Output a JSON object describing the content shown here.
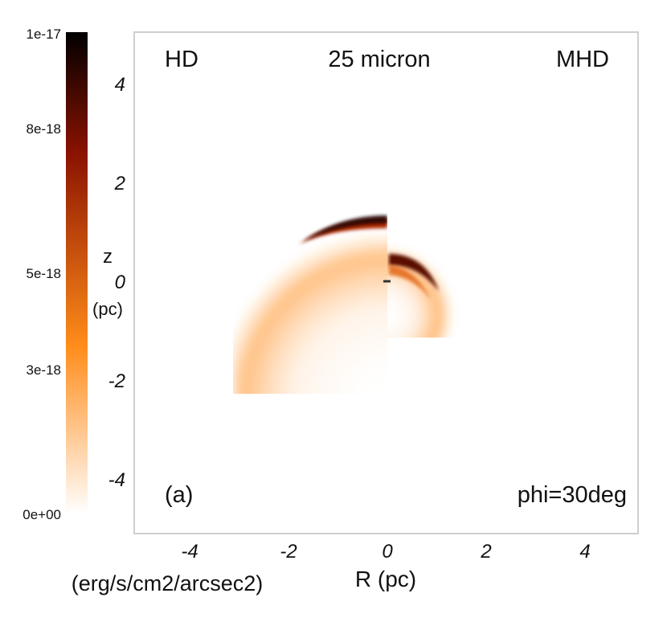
{
  "chart_data": {
    "type": "heatmap",
    "panel_labels": {
      "left": "HD",
      "center": "25 micron",
      "right": "MHD",
      "corner_tag": "(a)",
      "angle_tag": "phi=30deg"
    },
    "xlabel": "R (pc)",
    "ylabel_top": "z",
    "ylabel_bottom": "(pc)",
    "xlim": [
      -5,
      5
    ],
    "ylim": [
      -5,
      5
    ],
    "xticks": [
      -4,
      -2,
      0,
      2,
      4
    ],
    "yticks": [
      4,
      2,
      0,
      -2,
      -4
    ],
    "grid": false,
    "colorbar": {
      "label": "(erg/s/cm2/arcsec2)",
      "min": 0,
      "max": 1e-17,
      "ticks": [
        {
          "value": 1e-17,
          "label": "1e-17"
        },
        {
          "value": 8e-18,
          "label": "8e-18"
        },
        {
          "value": 5e-18,
          "label": "5e-18"
        },
        {
          "value": 3e-18,
          "label": "3e-18"
        },
        {
          "value": 0,
          "label": "0e+00"
        }
      ],
      "colors": [
        "#ffffff",
        "#ff8c1a",
        "#8a1200",
        "#000000"
      ]
    },
    "features": [
      {
        "side": "HD",
        "shape": "bow shell",
        "apex_R": 0,
        "apex_z": 1.25,
        "peak_intensity": 1e-17
      },
      {
        "side": "MHD",
        "shape": "bow shell",
        "apex_R": 0,
        "apex_z": 0.45,
        "peak_intensity": 9e-18
      }
    ]
  }
}
